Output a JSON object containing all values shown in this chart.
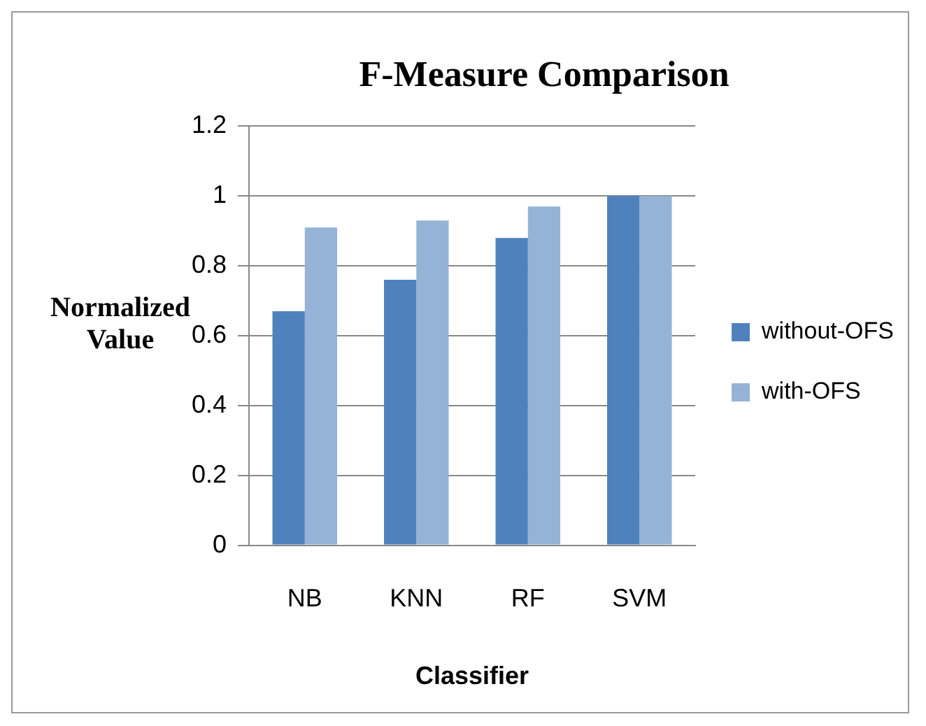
{
  "chart_data": {
    "type": "bar",
    "title": "F-Measure Comparison",
    "xlabel": "Classifier",
    "ylabel": "Normalized Value",
    "categories": [
      "NB",
      "KNN",
      "RF",
      "SVM"
    ],
    "series": [
      {
        "name": "without-OFS",
        "color": "#4f81bd",
        "values": [
          0.67,
          0.76,
          0.88,
          1
        ]
      },
      {
        "name": "with-OFS",
        "color": "#95b3d7",
        "values": [
          0.91,
          0.93,
          0.97,
          1
        ]
      }
    ],
    "ylim": [
      0,
      1.2
    ],
    "yticks": [
      0,
      0.2,
      0.4,
      0.6,
      0.8,
      1,
      1.2
    ],
    "grid": "y",
    "legend": "right"
  }
}
